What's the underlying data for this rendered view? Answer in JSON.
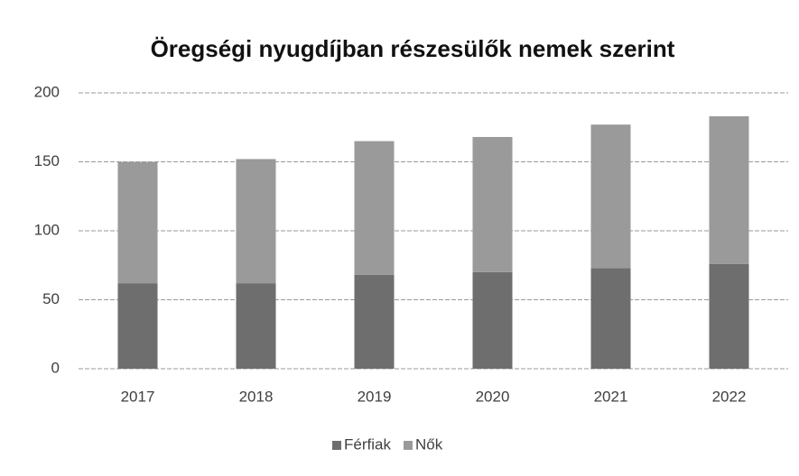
{
  "chart_data": {
    "type": "stacked_bar",
    "title": "Öregségi nyugdíjban részesülők nemek szerint",
    "categories": [
      "2017",
      "2018",
      "2019",
      "2020",
      "2021",
      "2022"
    ],
    "series": [
      {
        "name": "Férfiak",
        "color": "#6e6e6e",
        "values": [
          62,
          62,
          68,
          70,
          73,
          76
        ]
      },
      {
        "name": "Nők",
        "color": "#9a9a9a",
        "values": [
          88,
          90,
          97,
          98,
          104,
          107
        ]
      }
    ],
    "ylim": [
      0,
      200
    ],
    "yticks": [
      0,
      50,
      100,
      150,
      200
    ],
    "grid": true,
    "legend": "bottom"
  }
}
